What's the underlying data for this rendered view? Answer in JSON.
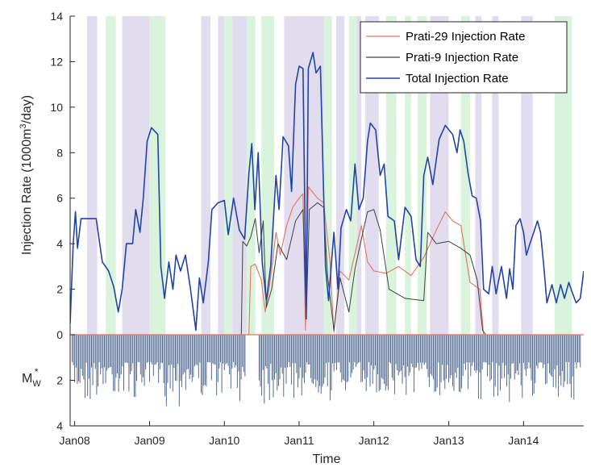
{
  "chart_data": {
    "type": "line",
    "xlabel": "Time",
    "ylabel_prefix": "Injection Rate (1000m",
    "ylabel_sup": "3",
    "ylabel_suffix": "/day)",
    "ylim": [
      0,
      14
    ],
    "yticks": [
      "0",
      "2",
      "4",
      "6",
      "8",
      "10",
      "12",
      "14"
    ],
    "x_range": [
      "2007-12-10",
      "2014-10-22"
    ],
    "xticks": [
      {
        "label": "Jan08",
        "date": "2008-01-01"
      },
      {
        "label": "Jan09",
        "date": "2009-01-01"
      },
      {
        "label": "Jan10",
        "date": "2010-01-01"
      },
      {
        "label": "Jan11",
        "date": "2011-01-01"
      },
      {
        "label": "Jan12",
        "date": "2012-01-01"
      },
      {
        "label": "Jan13",
        "date": "2013-01-01"
      },
      {
        "label": "Jan14",
        "date": "2014-01-01"
      }
    ],
    "legend_position": "top-right",
    "colors": {
      "prati29": "#e8735f",
      "prati9": "#404040",
      "total": "#2244a8",
      "band_purple": "#e1dcee",
      "band_green": "#d9f3dc",
      "stem": "#3f5a85",
      "axis": "#262626"
    },
    "series": [
      {
        "key": "prati29",
        "name": "Prati-29 Injection Rate",
        "points": [
          [
            "2007-12-10",
            0
          ],
          [
            "2010-05-01",
            0
          ],
          [
            "2010-05-10",
            3.0
          ],
          [
            "2010-06-01",
            3.1
          ],
          [
            "2010-07-01",
            2.4
          ],
          [
            "2010-07-20",
            1.0
          ],
          [
            "2010-08-10",
            2.2
          ],
          [
            "2010-09-10",
            4.5
          ],
          [
            "2010-10-01",
            3.5
          ],
          [
            "2010-11-01",
            4.8
          ],
          [
            "2010-12-01",
            5.6
          ],
          [
            "2011-01-01",
            6.0
          ],
          [
            "2011-01-20",
            6.2
          ],
          [
            "2011-02-01",
            0.2
          ],
          [
            "2011-02-15",
            6.5
          ],
          [
            "2011-04-01",
            6.0
          ],
          [
            "2011-05-01",
            5.8
          ],
          [
            "2011-06-01",
            3.2
          ],
          [
            "2011-06-20",
            0.1
          ],
          [
            "2011-07-20",
            2.8
          ],
          [
            "2011-09-01",
            2.4
          ],
          [
            "2011-11-01",
            4.8
          ],
          [
            "2011-12-01",
            3.2
          ],
          [
            "2012-01-01",
            2.8
          ],
          [
            "2012-03-01",
            2.7
          ],
          [
            "2012-05-01",
            3.0
          ],
          [
            "2012-07-01",
            2.6
          ],
          [
            "2012-09-01",
            3.4
          ],
          [
            "2012-11-01",
            4.6
          ],
          [
            "2012-12-15",
            5.4
          ],
          [
            "2013-01-20",
            5.0
          ],
          [
            "2013-03-01",
            4.8
          ],
          [
            "2013-04-15",
            2.3
          ],
          [
            "2013-06-01",
            2.0
          ],
          [
            "2013-06-20",
            0
          ],
          [
            "2014-10-22",
            0
          ]
        ]
      },
      {
        "key": "prati9",
        "name": "Prati-9 Injection Rate",
        "points": [
          [
            "2007-12-10",
            0
          ],
          [
            "2010-03-25",
            0
          ],
          [
            "2010-04-01",
            4.1
          ],
          [
            "2010-04-20",
            3.9
          ],
          [
            "2010-05-10",
            4.3
          ],
          [
            "2010-06-01",
            5.1
          ],
          [
            "2010-06-20",
            3.6
          ],
          [
            "2010-07-10",
            5.0
          ],
          [
            "2010-07-25",
            1.2
          ],
          [
            "2010-08-20",
            2.0
          ],
          [
            "2010-09-20",
            4.0
          ],
          [
            "2010-11-01",
            3.3
          ],
          [
            "2010-12-15",
            5.0
          ],
          [
            "2011-01-20",
            5.5
          ],
          [
            "2011-02-05",
            0.7
          ],
          [
            "2011-02-20",
            5.5
          ],
          [
            "2011-04-01",
            5.8
          ],
          [
            "2011-05-01",
            5.6
          ],
          [
            "2011-05-20",
            2.6
          ],
          [
            "2011-06-20",
            0.2
          ],
          [
            "2011-07-20",
            2.5
          ],
          [
            "2011-09-01",
            1.0
          ],
          [
            "2011-10-01",
            2.9
          ],
          [
            "2011-11-01",
            4.2
          ],
          [
            "2011-12-01",
            5.4
          ],
          [
            "2012-01-01",
            5.5
          ],
          [
            "2012-02-01",
            4.6
          ],
          [
            "2012-03-15",
            2.0
          ],
          [
            "2012-06-01",
            1.6
          ],
          [
            "2012-09-01",
            1.5
          ],
          [
            "2012-09-20",
            4.5
          ],
          [
            "2012-11-01",
            4.0
          ],
          [
            "2013-01-01",
            4.1
          ],
          [
            "2013-03-01",
            3.8
          ],
          [
            "2013-04-15",
            3.5
          ],
          [
            "2013-05-20",
            2.4
          ],
          [
            "2013-06-15",
            0.2
          ],
          [
            "2013-07-01",
            0
          ],
          [
            "2014-10-22",
            0
          ]
        ]
      },
      {
        "key": "total",
        "name": "Total Injection Rate",
        "points": [
          [
            "2007-12-10",
            0.5
          ],
          [
            "2007-12-25",
            4.0
          ],
          [
            "2008-01-05",
            5.4
          ],
          [
            "2008-01-15",
            3.8
          ],
          [
            "2008-02-01",
            5.1
          ],
          [
            "2008-04-15",
            5.1
          ],
          [
            "2008-05-15",
            3.2
          ],
          [
            "2008-06-15",
            2.8
          ],
          [
            "2008-07-10",
            2.1
          ],
          [
            "2008-08-01",
            1.0
          ],
          [
            "2008-08-20",
            2.0
          ],
          [
            "2008-09-10",
            4.0
          ],
          [
            "2008-10-10",
            4.0
          ],
          [
            "2008-10-25",
            5.5
          ],
          [
            "2008-11-15",
            4.5
          ],
          [
            "2008-12-01",
            6.0
          ],
          [
            "2008-12-20",
            8.5
          ],
          [
            "2009-01-10",
            9.1
          ],
          [
            "2009-02-10",
            8.8
          ],
          [
            "2009-02-25",
            3.0
          ],
          [
            "2009-03-15",
            1.6
          ],
          [
            "2009-04-05",
            3.2
          ],
          [
            "2009-04-25",
            2.0
          ],
          [
            "2009-05-10",
            3.5
          ],
          [
            "2009-06-01",
            2.8
          ],
          [
            "2009-06-25",
            3.5
          ],
          [
            "2009-07-20",
            2.0
          ],
          [
            "2009-08-15",
            0.2
          ],
          [
            "2009-09-01",
            2.5
          ],
          [
            "2009-09-20",
            1.4
          ],
          [
            "2009-10-15",
            3.2
          ],
          [
            "2009-11-01",
            5.5
          ],
          [
            "2009-12-01",
            5.8
          ],
          [
            "2010-01-01",
            5.9
          ],
          [
            "2010-01-20",
            4.4
          ],
          [
            "2010-02-15",
            6.0
          ],
          [
            "2010-03-15",
            4.6
          ],
          [
            "2010-04-10",
            4.2
          ],
          [
            "2010-05-01",
            7.1
          ],
          [
            "2010-05-15",
            8.4
          ],
          [
            "2010-05-30",
            5.5
          ],
          [
            "2010-06-15",
            8.0
          ],
          [
            "2010-07-05",
            3.2
          ],
          [
            "2010-07-25",
            1.5
          ],
          [
            "2010-08-15",
            3.0
          ],
          [
            "2010-09-10",
            7.0
          ],
          [
            "2010-09-25",
            5.5
          ],
          [
            "2010-10-15",
            8.7
          ],
          [
            "2010-11-10",
            8.3
          ],
          [
            "2010-11-25",
            6.3
          ],
          [
            "2010-12-15",
            11.0
          ],
          [
            "2011-01-01",
            11.8
          ],
          [
            "2011-01-20",
            11.7
          ],
          [
            "2011-02-05",
            0.7
          ],
          [
            "2011-02-15",
            11.7
          ],
          [
            "2011-03-10",
            12.4
          ],
          [
            "2011-03-25",
            11.5
          ],
          [
            "2011-04-15",
            11.8
          ],
          [
            "2011-05-10",
            3.0
          ],
          [
            "2011-05-25",
            1.5
          ],
          [
            "2011-06-20",
            4.5
          ],
          [
            "2011-07-10",
            2.0
          ],
          [
            "2011-07-25",
            4.7
          ],
          [
            "2011-08-20",
            5.5
          ],
          [
            "2011-09-10",
            5.0
          ],
          [
            "2011-10-01",
            7.5
          ],
          [
            "2011-10-20",
            5.5
          ],
          [
            "2011-11-10",
            6.0
          ],
          [
            "2011-12-01",
            8.5
          ],
          [
            "2011-12-15",
            9.3
          ],
          [
            "2012-01-10",
            9.0
          ],
          [
            "2012-02-01",
            7.0
          ],
          [
            "2012-02-20",
            7.5
          ],
          [
            "2012-03-10",
            5.2
          ],
          [
            "2012-04-10",
            5.0
          ],
          [
            "2012-05-01",
            3.3
          ],
          [
            "2012-06-01",
            5.6
          ],
          [
            "2012-07-01",
            5.2
          ],
          [
            "2012-07-25",
            3.3
          ],
          [
            "2012-08-15",
            3.0
          ],
          [
            "2012-09-01",
            7.0
          ],
          [
            "2012-09-20",
            7.8
          ],
          [
            "2012-10-15",
            6.6
          ],
          [
            "2012-11-15",
            8.6
          ],
          [
            "2012-12-15",
            9.2
          ],
          [
            "2013-01-20",
            8.8
          ],
          [
            "2013-02-10",
            8.0
          ],
          [
            "2013-02-25",
            9.0
          ],
          [
            "2013-03-15",
            8.5
          ],
          [
            "2013-04-05",
            7.1
          ],
          [
            "2013-04-25",
            6.1
          ],
          [
            "2013-05-15",
            6.0
          ],
          [
            "2013-06-05",
            5.0
          ],
          [
            "2013-06-20",
            2.0
          ],
          [
            "2013-07-15",
            1.8
          ],
          [
            "2013-08-01",
            3.0
          ],
          [
            "2013-08-20",
            1.8
          ],
          [
            "2013-09-15",
            3.0
          ],
          [
            "2013-10-10",
            1.6
          ],
          [
            "2013-10-25",
            2.9
          ],
          [
            "2013-11-10",
            2.0
          ],
          [
            "2013-11-25",
            4.8
          ],
          [
            "2013-12-15",
            5.1
          ],
          [
            "2014-01-01",
            4.5
          ],
          [
            "2014-01-15",
            3.5
          ],
          [
            "2014-02-01",
            4.0
          ],
          [
            "2014-02-20",
            4.5
          ],
          [
            "2014-03-10",
            5.0
          ],
          [
            "2014-03-25",
            4.5
          ],
          [
            "2014-04-10",
            3.0
          ],
          [
            "2014-04-25",
            1.4
          ],
          [
            "2014-05-20",
            2.2
          ],
          [
            "2014-06-10",
            1.4
          ],
          [
            "2014-07-01",
            2.2
          ],
          [
            "2014-07-20",
            1.6
          ],
          [
            "2014-08-10",
            2.3
          ],
          [
            "2014-08-25",
            1.9
          ],
          [
            "2014-09-15",
            1.4
          ],
          [
            "2014-10-05",
            1.6
          ],
          [
            "2014-10-22",
            2.8
          ]
        ]
      }
    ],
    "bands": [
      {
        "c": "p",
        "s": "2008-03-01",
        "e": "2008-04-20"
      },
      {
        "c": "g",
        "s": "2008-06-01",
        "e": "2008-07-20"
      },
      {
        "c": "p",
        "s": "2008-08-20",
        "e": "2008-12-31"
      },
      {
        "c": "g",
        "s": "2008-12-31",
        "e": "2009-03-20"
      },
      {
        "c": "p",
        "s": "2009-09-10",
        "e": "2009-10-25"
      },
      {
        "c": "p",
        "s": "2009-12-01",
        "e": "2010-01-01"
      },
      {
        "c": "g",
        "s": "2010-01-01",
        "e": "2010-02-10"
      },
      {
        "c": "p",
        "s": "2010-02-10",
        "e": "2010-04-20"
      },
      {
        "c": "g",
        "s": "2010-04-20",
        "e": "2010-06-01"
      },
      {
        "c": "g",
        "s": "2010-07-01",
        "e": "2010-09-01"
      },
      {
        "c": "p",
        "s": "2010-10-20",
        "e": "2011-05-01"
      },
      {
        "c": "g",
        "s": "2011-05-01",
        "e": "2011-06-10"
      },
      {
        "c": "p",
        "s": "2011-07-01",
        "e": "2011-08-10"
      },
      {
        "c": "g",
        "s": "2011-09-01",
        "e": "2011-10-10"
      },
      {
        "c": "p",
        "s": "2011-10-10",
        "e": "2011-11-01"
      },
      {
        "c": "p",
        "s": "2011-11-20",
        "e": "2012-01-25"
      },
      {
        "c": "g",
        "s": "2012-03-01",
        "e": "2012-04-20"
      },
      {
        "c": "g",
        "s": "2012-06-01",
        "e": "2012-07-01"
      },
      {
        "c": "g",
        "s": "2012-08-01",
        "e": "2012-09-15"
      },
      {
        "c": "p",
        "s": "2012-10-01",
        "e": "2012-12-31"
      },
      {
        "c": "g",
        "s": "2013-03-01",
        "e": "2013-04-15"
      },
      {
        "c": "p",
        "s": "2013-05-10",
        "e": "2013-06-10"
      },
      {
        "c": "p",
        "s": "2013-08-01",
        "e": "2013-09-01"
      },
      {
        "c": "p",
        "s": "2013-12-20",
        "e": "2014-02-15"
      },
      {
        "c": "g",
        "s": "2014-06-01",
        "e": "2014-08-25"
      }
    ],
    "mw_subplot": {
      "label_base": "M",
      "label_sub": "W",
      "label_sup": "*",
      "ylim": [
        0,
        4
      ],
      "yticks": [
        "2",
        "4"
      ],
      "magnitude_range": [
        1.2,
        3.2
      ],
      "active_periods": [
        [
          "2007-12-20",
          "2010-04-15"
        ],
        [
          "2010-06-20",
          "2014-10-10"
        ]
      ]
    }
  }
}
